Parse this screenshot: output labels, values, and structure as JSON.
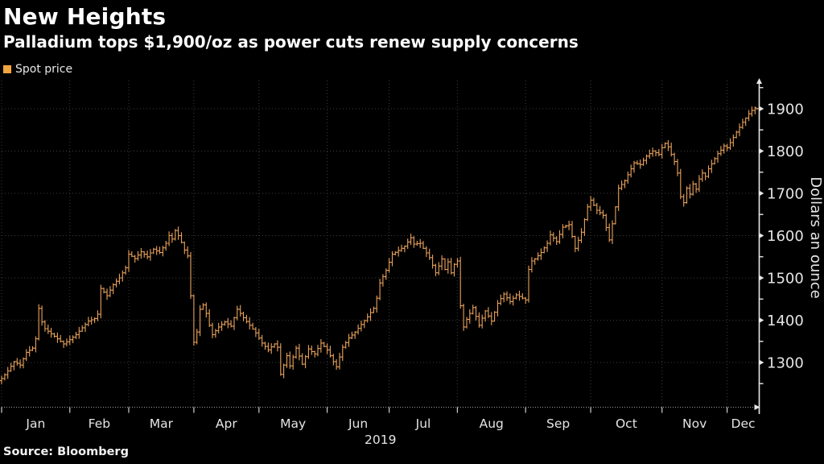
{
  "title": "New Heights",
  "subtitle": "Palladium tops $1,900/oz as power cuts renew supply concerns",
  "legend": {
    "label": "Spot price",
    "swatch_color": "#f2a43f"
  },
  "source": "Source:  Bloomberg",
  "colors": {
    "background": "#000000",
    "bars": "#e9a25a",
    "end_line": "#b5763a",
    "axis": "#e8e8e8",
    "grid": "#3d3d3d",
    "baseline": "#9f9f9f",
    "tick": "#cfcfcf",
    "text_axis": "#e4e4e4",
    "text_primary": "#ffffff"
  },
  "chart_data": {
    "type": "bar",
    "subtype": "ohlc-daily-bars",
    "title": "New Heights",
    "subtitle": "Palladium tops $1,900/oz as power cuts renew supply concerns",
    "series_name": "Spot price",
    "x_axis": {
      "months": [
        "Jan",
        "Feb",
        "Mar",
        "Apr",
        "May",
        "Jun",
        "Jul",
        "Aug",
        "Sep",
        "Oct",
        "Nov",
        "Dec"
      ],
      "year_label": "2019",
      "month_start_day": [
        0,
        22,
        41,
        62,
        83,
        105,
        125,
        147,
        169,
        190,
        213,
        234
      ],
      "total_days": 243
    },
    "y_axis": {
      "label": "Dollars an ounce",
      "ticks": [
        1300,
        1400,
        1500,
        1600,
        1700,
        1800,
        1900
      ],
      "minor_ticks": [
        1250,
        1350,
        1450,
        1550,
        1650,
        1750,
        1850,
        1950
      ],
      "range": [
        1200,
        1965
      ],
      "grid": true
    },
    "legend_position": "top-left",
    "final_price_line": 1900,
    "anchors": [
      [
        0,
        1262
      ],
      [
        2,
        1280
      ],
      [
        4,
        1302
      ],
      [
        6,
        1294
      ],
      [
        8,
        1324
      ],
      [
        10,
        1334
      ],
      [
        11,
        1356
      ],
      [
        12,
        1428
      ],
      [
        13,
        1396
      ],
      [
        14,
        1380
      ],
      [
        16,
        1368
      ],
      [
        18,
        1356
      ],
      [
        20,
        1344
      ],
      [
        22,
        1354
      ],
      [
        24,
        1366
      ],
      [
        26,
        1382
      ],
      [
        28,
        1398
      ],
      [
        30,
        1404
      ],
      [
        31,
        1414
      ],
      [
        32,
        1475
      ],
      [
        34,
        1458
      ],
      [
        36,
        1484
      ],
      [
        38,
        1500
      ],
      [
        40,
        1524
      ],
      [
        41,
        1556
      ],
      [
        43,
        1546
      ],
      [
        45,
        1562
      ],
      [
        47,
        1550
      ],
      [
        49,
        1568
      ],
      [
        51,
        1560
      ],
      [
        53,
        1582
      ],
      [
        54,
        1600
      ],
      [
        55,
        1592
      ],
      [
        56,
        1612
      ],
      [
        57,
        1600
      ],
      [
        58,
        1584
      ],
      [
        59,
        1566
      ],
      [
        60,
        1552
      ],
      [
        61,
        1458
      ],
      [
        62,
        1348
      ],
      [
        63,
        1372
      ],
      [
        64,
        1426
      ],
      [
        65,
        1436
      ],
      [
        66,
        1416
      ],
      [
        67,
        1388
      ],
      [
        68,
        1366
      ],
      [
        70,
        1384
      ],
      [
        72,
        1396
      ],
      [
        74,
        1386
      ],
      [
        76,
        1426
      ],
      [
        78,
        1406
      ],
      [
        80,
        1388
      ],
      [
        82,
        1370
      ],
      [
        84,
        1346
      ],
      [
        86,
        1330
      ],
      [
        88,
        1344
      ],
      [
        89,
        1336
      ],
      [
        90,
        1272
      ],
      [
        92,
        1316
      ],
      [
        93,
        1292
      ],
      [
        95,
        1334
      ],
      [
        97,
        1296
      ],
      [
        99,
        1332
      ],
      [
        101,
        1320
      ],
      [
        103,
        1346
      ],
      [
        105,
        1330
      ],
      [
        107,
        1302
      ],
      [
        108,
        1290
      ],
      [
        110,
        1336
      ],
      [
        112,
        1358
      ],
      [
        114,
        1372
      ],
      [
        116,
        1390
      ],
      [
        118,
        1408
      ],
      [
        120,
        1428
      ],
      [
        121,
        1452
      ],
      [
        122,
        1488
      ],
      [
        124,
        1518
      ],
      [
        126,
        1556
      ],
      [
        128,
        1565
      ],
      [
        130,
        1575
      ],
      [
        132,
        1595
      ],
      [
        133,
        1580
      ],
      [
        135,
        1582
      ],
      [
        136,
        1570
      ],
      [
        138,
        1548
      ],
      [
        140,
        1512
      ],
      [
        141,
        1528
      ],
      [
        142,
        1545
      ],
      [
        143,
        1520
      ],
      [
        144,
        1538
      ],
      [
        145,
        1512
      ],
      [
        146,
        1532
      ],
      [
        147,
        1540
      ],
      [
        148,
        1434
      ],
      [
        149,
        1384
      ],
      [
        150,
        1402
      ],
      [
        152,
        1430
      ],
      [
        154,
        1388
      ],
      [
        156,
        1422
      ],
      [
        158,
        1398
      ],
      [
        160,
        1440
      ],
      [
        162,
        1462
      ],
      [
        164,
        1444
      ],
      [
        166,
        1460
      ],
      [
        168,
        1452
      ],
      [
        169,
        1448
      ],
      [
        170,
        1520
      ],
      [
        171,
        1540
      ],
      [
        172,
        1545
      ],
      [
        174,
        1560
      ],
      [
        176,
        1582
      ],
      [
        177,
        1602
      ],
      [
        179,
        1586
      ],
      [
        181,
        1620
      ],
      [
        183,
        1626
      ],
      [
        185,
        1570
      ],
      [
        187,
        1608
      ],
      [
        189,
        1668
      ],
      [
        190,
        1684
      ],
      [
        192,
        1660
      ],
      [
        194,
        1648
      ],
      [
        196,
        1590
      ],
      [
        197,
        1628
      ],
      [
        198,
        1668
      ],
      [
        199,
        1712
      ],
      [
        201,
        1730
      ],
      [
        203,
        1758
      ],
      [
        204,
        1772
      ],
      [
        206,
        1768
      ],
      [
        208,
        1788
      ],
      [
        210,
        1800
      ],
      [
        212,
        1792
      ],
      [
        213,
        1808
      ],
      [
        214,
        1818
      ],
      [
        215,
        1810
      ],
      [
        216,
        1792
      ],
      [
        217,
        1775
      ],
      [
        218,
        1748
      ],
      [
        219,
        1692
      ],
      [
        220,
        1678
      ],
      [
        221,
        1712
      ],
      [
        222,
        1698
      ],
      [
        223,
        1722
      ],
      [
        224,
        1710
      ],
      [
        225,
        1734
      ],
      [
        226,
        1748
      ],
      [
        227,
        1740
      ],
      [
        228,
        1758
      ],
      [
        229,
        1770
      ],
      [
        230,
        1782
      ],
      [
        231,
        1794
      ],
      [
        232,
        1802
      ],
      [
        233,
        1812
      ],
      [
        234,
        1808
      ],
      [
        235,
        1820
      ],
      [
        236,
        1832
      ],
      [
        237,
        1845
      ],
      [
        238,
        1856
      ],
      [
        239,
        1868
      ],
      [
        240,
        1878
      ],
      [
        241,
        1888
      ],
      [
        242,
        1896
      ],
      [
        243,
        1902
      ]
    ]
  }
}
